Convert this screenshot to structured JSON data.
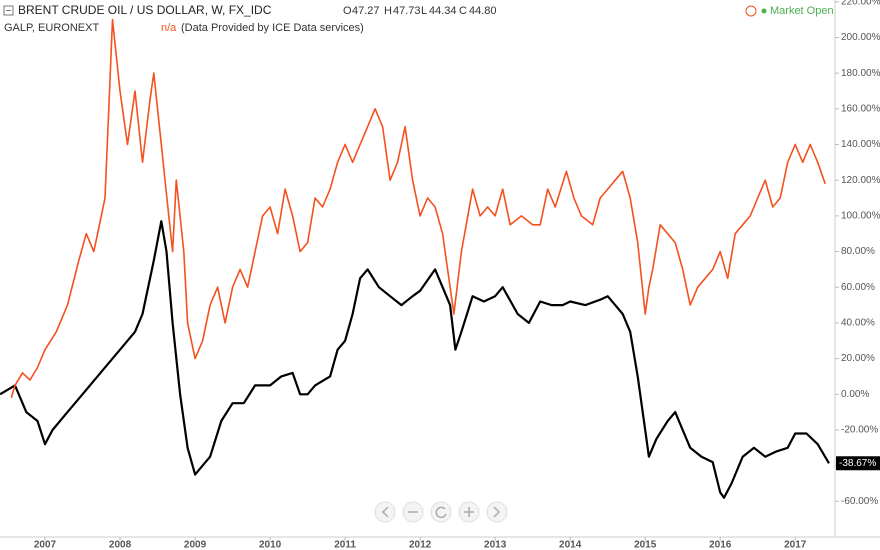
{
  "header": {
    "symbol": "BRENT CRUDE OIL / US DOLLAR, W, FX_IDC",
    "ohlc": [
      {
        "key": "O",
        "value": "47.27"
      },
      {
        "key": "H",
        "value": "47.73"
      },
      {
        "key": "L",
        "value": "44.34"
      },
      {
        "key": "C",
        "value": "44.80"
      }
    ],
    "compare": "GALP, EURONEXT",
    "compare_value": "n/a",
    "note": "(Data Provided by ICE Data services)",
    "status": "Market Open"
  },
  "chart_data": {
    "type": "line",
    "xlim": [
      2006.4,
      2017.53
    ],
    "xticks": [
      2007,
      2008,
      2009,
      2010,
      2011,
      2012,
      2013,
      2014,
      2015,
      2016,
      2017
    ],
    "ylim": [
      -80,
      221
    ],
    "yticks": [
      {
        "value": -60,
        "label": "-60.00%"
      },
      {
        "value": -40,
        "label": "-40.00%"
      },
      {
        "value": -20,
        "label": "-20.00%"
      },
      {
        "value": 0,
        "label": "0.00%"
      },
      {
        "value": 20,
        "label": "20.00%"
      },
      {
        "value": 40,
        "label": "40.00%"
      },
      {
        "value": 60,
        "label": "60.00%"
      },
      {
        "value": 80,
        "label": "80.00%"
      },
      {
        "value": 100,
        "label": "100.00%"
      },
      {
        "value": 120,
        "label": "120.00%"
      },
      {
        "value": 140,
        "label": "140.00%"
      },
      {
        "value": 160,
        "label": "160.00%"
      },
      {
        "value": 180,
        "label": "180.00%"
      },
      {
        "value": 200,
        "label": "200.00%"
      },
      {
        "value": 220,
        "label": "220.00%"
      }
    ],
    "series": [
      {
        "name": "BRENT CRUDE OIL / US DOLLAR, W, FX_IDC",
        "color": "#000000",
        "x": [
          2006.4,
          2006.6,
          2006.75,
          2006.9,
          2007.0,
          2007.1,
          2007.3,
          2007.5,
          2007.7,
          2007.9,
          2008.0,
          2008.2,
          2008.3,
          2008.45,
          2008.55,
          2008.62,
          2008.7,
          2008.8,
          2008.9,
          2009.0,
          2009.1,
          2009.2,
          2009.35,
          2009.5,
          2009.65,
          2009.8,
          2009.9,
          2010.0,
          2010.15,
          2010.3,
          2010.4,
          2010.5,
          2010.6,
          2010.8,
          2010.9,
          2011.0,
          2011.1,
          2011.2,
          2011.3,
          2011.45,
          2011.6,
          2011.75,
          2011.9,
          2012.0,
          2012.2,
          2012.3,
          2012.4,
          2012.47,
          2012.55,
          2012.7,
          2012.85,
          2013.0,
          2013.1,
          2013.3,
          2013.45,
          2013.6,
          2013.75,
          2013.9,
          2014.0,
          2014.2,
          2014.4,
          2014.5,
          2014.6,
          2014.7,
          2014.8,
          2014.9,
          2015.0,
          2015.05,
          2015.15,
          2015.3,
          2015.4,
          2015.5,
          2015.6,
          2015.75,
          2015.9,
          2016.0,
          2016.05,
          2016.15,
          2016.3,
          2016.45,
          2016.6,
          2016.75,
          2016.9,
          2017.0,
          2017.15,
          2017.3,
          2017.45
        ],
        "values": [
          0,
          5,
          -10,
          -15,
          -28,
          -20,
          -10,
          0,
          10,
          20,
          25,
          35,
          45,
          75,
          97,
          80,
          40,
          0,
          -30,
          -45,
          -40,
          -35,
          -15,
          -5,
          -5,
          5,
          5,
          5,
          10,
          12,
          0,
          0,
          5,
          10,
          25,
          30,
          45,
          65,
          70,
          60,
          55,
          50,
          55,
          58,
          70,
          60,
          50,
          25,
          35,
          55,
          52,
          55,
          60,
          45,
          40,
          52,
          50,
          50,
          52,
          50,
          53,
          55,
          50,
          45,
          35,
          10,
          -20,
          -35,
          -25,
          -15,
          -10,
          -20,
          -30,
          -35,
          -38,
          -55,
          -58,
          -50,
          -35,
          -30,
          -35,
          -32,
          -30,
          -22,
          -22,
          -28,
          -38.67
        ],
        "last": {
          "value": -38.67,
          "label": "-38.67%"
        }
      },
      {
        "name": "GALP, EURONEXT",
        "color": "#f4511e",
        "x": [
          2006.55,
          2006.6,
          2006.7,
          2006.8,
          2006.9,
          2007.0,
          2007.15,
          2007.3,
          2007.45,
          2007.55,
          2007.65,
          2007.75,
          2007.8,
          2007.85,
          2007.9,
          2008.0,
          2008.1,
          2008.2,
          2008.3,
          2008.4,
          2008.45,
          2008.55,
          2008.6,
          2008.7,
          2008.75,
          2008.85,
          2008.9,
          2009.0,
          2009.1,
          2009.2,
          2009.3,
          2009.4,
          2009.5,
          2009.6,
          2009.7,
          2009.8,
          2009.9,
          2010.0,
          2010.1,
          2010.2,
          2010.3,
          2010.4,
          2010.5,
          2010.6,
          2010.7,
          2010.8,
          2010.9,
          2011.0,
          2011.1,
          2011.25,
          2011.4,
          2011.5,
          2011.6,
          2011.7,
          2011.8,
          2011.9,
          2012.0,
          2012.1,
          2012.2,
          2012.3,
          2012.4,
          2012.45,
          2012.55,
          2012.7,
          2012.8,
          2012.9,
          2013.0,
          2013.1,
          2013.2,
          2013.35,
          2013.5,
          2013.6,
          2013.7,
          2013.8,
          2013.95,
          2014.05,
          2014.15,
          2014.3,
          2014.4,
          2014.5,
          2014.6,
          2014.7,
          2014.8,
          2014.9,
          2015.0,
          2015.05,
          2015.1,
          2015.2,
          2015.3,
          2015.4,
          2015.5,
          2015.6,
          2015.7,
          2015.8,
          2015.9,
          2016.0,
          2016.1,
          2016.2,
          2016.3,
          2016.4,
          2016.5,
          2016.6,
          2016.7,
          2016.8,
          2016.9,
          2017.0,
          2017.1,
          2017.2,
          2017.3,
          2017.4
        ],
        "values": [
          -2,
          5,
          12,
          8,
          15,
          25,
          35,
          50,
          75,
          90,
          80,
          100,
          110,
          160,
          210,
          170,
          140,
          170,
          130,
          165,
          180,
          140,
          120,
          80,
          120,
          80,
          40,
          20,
          30,
          50,
          60,
          40,
          60,
          70,
          60,
          80,
          100,
          105,
          90,
          115,
          100,
          80,
          85,
          110,
          105,
          115,
          130,
          140,
          130,
          145,
          160,
          150,
          120,
          130,
          150,
          120,
          100,
          110,
          105,
          90,
          60,
          45,
          80,
          115,
          100,
          105,
          100,
          115,
          95,
          100,
          95,
          95,
          115,
          105,
          125,
          110,
          100,
          95,
          110,
          115,
          120,
          125,
          110,
          85,
          45,
          60,
          70,
          95,
          90,
          85,
          70,
          50,
          60,
          65,
          70,
          80,
          65,
          90,
          95,
          100,
          110,
          120,
          105,
          110,
          130,
          140,
          130,
          140,
          130,
          118
        ]
      }
    ]
  }
}
